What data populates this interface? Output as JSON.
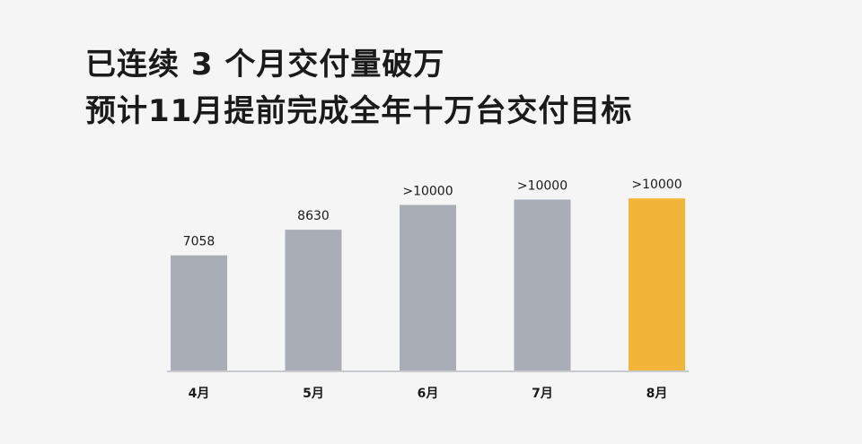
{
  "headline": {
    "line1": "已连续 3 个月交付量破万",
    "line2": "预计11月提前完成全年十万台交付目标"
  },
  "colors": {
    "bar_default": "#a9adb5",
    "bar_highlight": "#f2b53a",
    "baseline": "#c6c9ce",
    "background": "#f5f5f5"
  },
  "chart_data": {
    "type": "bar",
    "categories": [
      "4月",
      "5月",
      "6月",
      "7月",
      "8月"
    ],
    "values": [
      7058,
      8630,
      10150,
      10480,
      10550
    ],
    "value_labels": [
      "7058",
      "8630",
      ">10000",
      ">10000",
      ">10000"
    ],
    "highlight_index": 4,
    "ylim": [
      0,
      11000
    ],
    "grid": false,
    "legend": "none"
  }
}
